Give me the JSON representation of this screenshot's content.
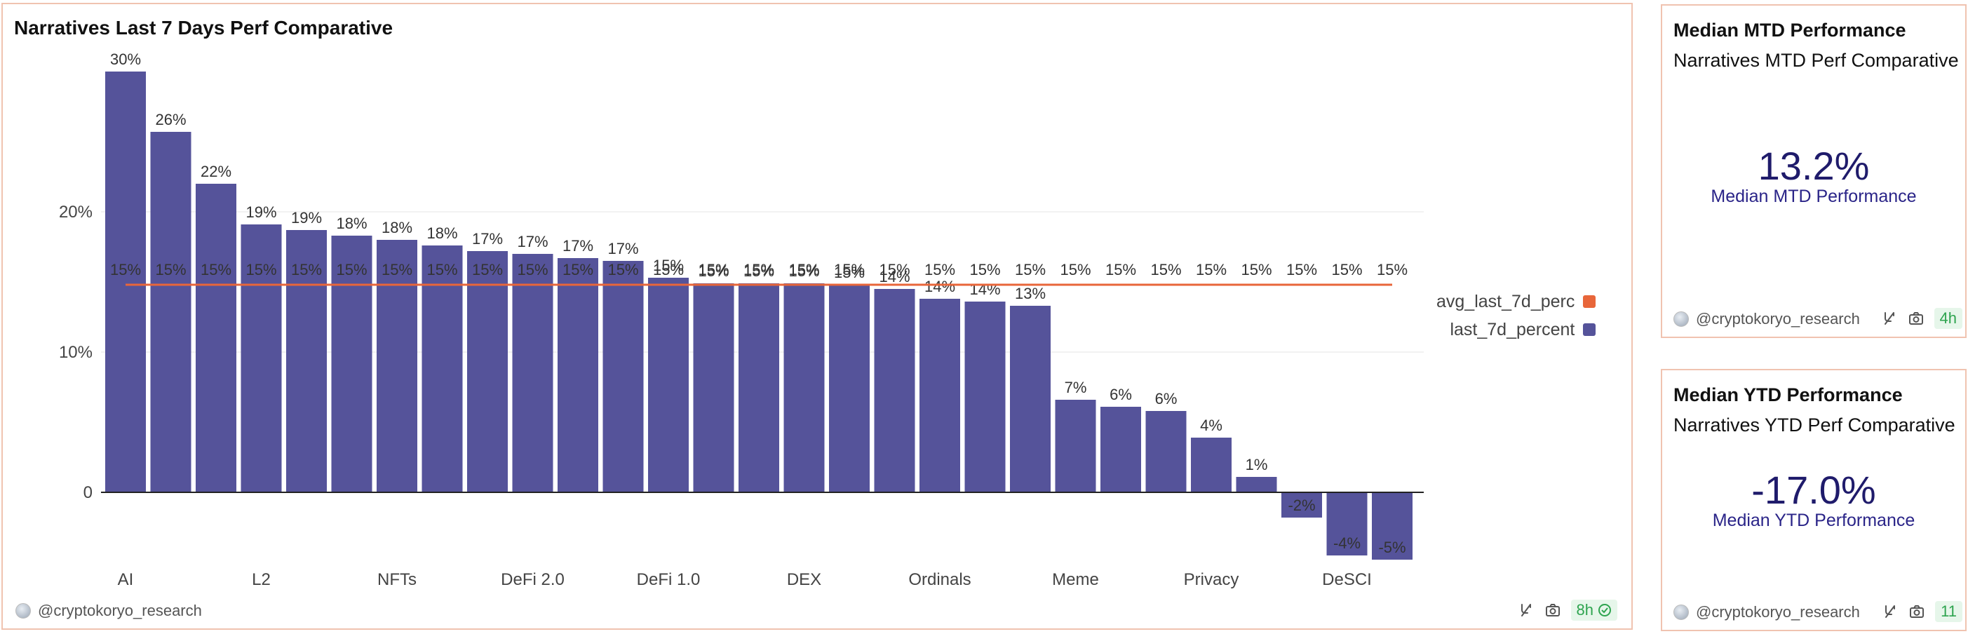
{
  "main_card": {
    "title": "Narratives Last 7 Days Perf Comparative",
    "author": "@cryptokoryo_research",
    "refresh_badge": "8h"
  },
  "chart_data": {
    "type": "bar",
    "categories": [
      "AI",
      "",
      "",
      "L2",
      "",
      "",
      "NFTs",
      "",
      "",
      "DeFi 2.0",
      "",
      "",
      "DeFi 1.0",
      "",
      "",
      "DEX",
      "",
      "",
      "Ordinals",
      "",
      "",
      "Meme",
      "",
      "",
      "Privacy",
      "",
      "",
      "DeSCI",
      ""
    ],
    "bar_labels": [
      "30%",
      "26%",
      "22%",
      "19%",
      "19%",
      "18%",
      "18%",
      "18%",
      "17%",
      "17%",
      "17%",
      "17%",
      "15%",
      "15%",
      "15%",
      "15%",
      "15%",
      "14%",
      "14%",
      "14%",
      "13%",
      "7%",
      "6%",
      "6%",
      "4%",
      "1%",
      "-2%",
      "-4%",
      "-5%"
    ],
    "avg_labels": [
      "15%",
      "15%",
      "15%",
      "15%",
      "15%",
      "15%",
      "15%",
      "15%",
      "15%",
      "15%",
      "15%",
      "15%",
      "15%",
      "15%",
      "15%",
      "15%",
      "15%",
      "15%",
      "15%",
      "15%",
      "15%",
      "15%",
      "15%",
      "15%",
      "15%",
      "15%",
      "15%",
      "15%",
      "15%"
    ],
    "series": [
      {
        "name": "last_7d_percent",
        "values": [
          30.0,
          25.7,
          22.0,
          19.1,
          18.7,
          18.3,
          18.0,
          17.6,
          17.2,
          17.0,
          16.7,
          16.5,
          15.3,
          14.9,
          14.9,
          14.9,
          14.8,
          14.5,
          13.8,
          13.6,
          13.3,
          6.6,
          6.1,
          5.8,
          3.9,
          1.1,
          -1.8,
          -4.5,
          -4.8
        ],
        "color": "#55539a"
      },
      {
        "name": "avg_last_7d_perc",
        "values": [
          14.8,
          14.8,
          14.8,
          14.8,
          14.8,
          14.8,
          14.8,
          14.8,
          14.8,
          14.8,
          14.8,
          14.8,
          14.8,
          14.8,
          14.8,
          14.8,
          14.8,
          14.8,
          14.8,
          14.8,
          14.8,
          14.8,
          14.8,
          14.8,
          14.8,
          14.8,
          14.8,
          14.8,
          14.8
        ],
        "color": "#e8663a",
        "type": "line"
      }
    ],
    "yticks": [
      0,
      10,
      20
    ],
    "ytick_labels": [
      "0",
      "10%",
      "20%"
    ],
    "ylim": [
      -5,
      30
    ],
    "grid": true,
    "legend_placement": "right",
    "legend": [
      "avg_last_7d_perc",
      "last_7d_percent"
    ]
  },
  "mtd_card": {
    "title_bold": "Median MTD Performance",
    "title_rest": "Narratives MTD Perf Comparative",
    "value": "13.2%",
    "caption": "Median MTD Performance",
    "author": "@cryptokoryo_research",
    "refresh_badge": "4h"
  },
  "ytd_card": {
    "title_bold": "Median YTD Performance",
    "title_rest": "Narratives YTD Perf Comparative",
    "value": "-17.0%",
    "caption": "Median YTD Performance",
    "author": "@cryptokoryo_research",
    "refresh_badge": "11"
  }
}
